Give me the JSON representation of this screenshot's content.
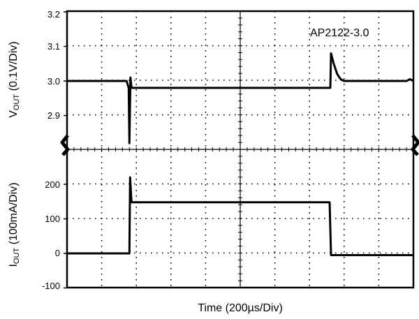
{
  "chart_data": [
    {
      "type": "line",
      "panel": "top",
      "annotation": "AP2122-3.0",
      "ylabel_main": "V",
      "ylabel_sub": "OUT",
      "ylabel_rest": " (0.1V/Div)",
      "ylim": [
        2.8,
        3.2
      ],
      "yticks": [
        "3.2",
        "3.1",
        "3.0",
        "2.9"
      ],
      "ytick_values": [
        3.2,
        3.1,
        3.0,
        2.9
      ],
      "xlim": [
        0,
        10
      ],
      "grid": true,
      "series": [
        {
          "x": [
            0,
            1.6,
            1.72,
            1.78,
            1.8,
            1.83,
            1.86,
            3.0,
            5.0,
            7.5,
            7.6,
            7.62,
            7.7,
            7.8,
            7.9,
            8.0,
            8.2,
            9.0,
            9.8,
            9.9,
            10
          ],
          "y": [
            3.0,
            3.0,
            3.0,
            2.98,
            2.82,
            3.01,
            2.98,
            2.98,
            2.98,
            2.98,
            2.98,
            3.08,
            3.05,
            3.02,
            3.005,
            3.0,
            3.0,
            3.0,
            3.0,
            3.005,
            3.0
          ]
        }
      ]
    },
    {
      "type": "line",
      "panel": "bottom",
      "ylabel_main": "I",
      "ylabel_sub": "OUT",
      "ylabel_rest": " (100mA/Div)",
      "xlabel": "Time (200µs/Div)",
      "ylim": [
        -100,
        250
      ],
      "yticks": [
        "200",
        "100",
        "0",
        "-100"
      ],
      "ytick_values": [
        200,
        100,
        0,
        -100
      ],
      "xlim": [
        0,
        10
      ],
      "grid": true,
      "series": [
        {
          "x": [
            0,
            1.78,
            1.8,
            1.82,
            1.86,
            3.0,
            5.0,
            7.55,
            7.58,
            7.62,
            8.5,
            10
          ],
          "y": [
            0,
            0,
            0,
            220,
            148,
            148,
            148,
            148,
            148,
            -5,
            -5,
            -5
          ]
        }
      ]
    }
  ]
}
